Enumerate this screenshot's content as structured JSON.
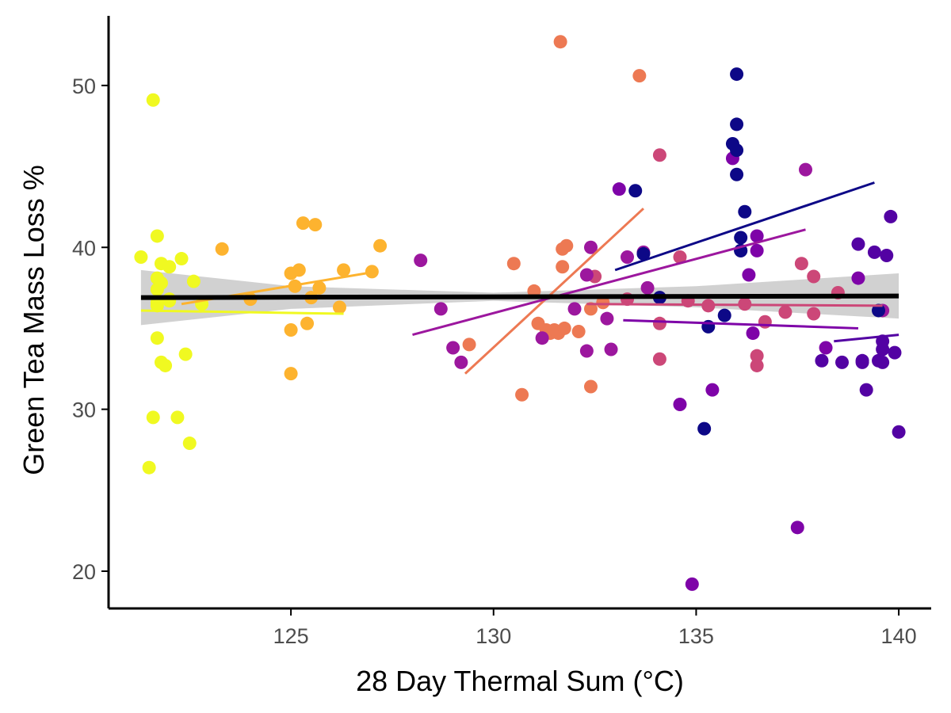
{
  "chart_data": {
    "type": "scatter",
    "title": "",
    "xlabel": "28 Day Thermal Sum (°C)",
    "ylabel": "Green Tea Mass Loss %",
    "xlim": [
      120.5,
      140.8
    ],
    "ylim": [
      17.7,
      54.3
    ],
    "x_ticks": [
      125,
      130,
      135,
      140
    ],
    "y_ticks": [
      20,
      30,
      40,
      50
    ],
    "grid": false,
    "legend": "none",
    "overall_fit": {
      "color": "#000000",
      "band_color": "#cccccc",
      "line": [
        [
          121.3,
          36.9
        ],
        [
          140,
          37.0
        ]
      ],
      "band": {
        "x": [
          121.3,
          125,
          130,
          135,
          140
        ],
        "lower": [
          35.2,
          36.2,
          36.7,
          36.3,
          35.6
        ],
        "upper": [
          38.6,
          37.6,
          37.2,
          37.6,
          38.4
        ]
      }
    },
    "series": [
      {
        "color": "#f0f921",
        "x": [
          121.3,
          121.5,
          121.6,
          121.6,
          121.7,
          121.7,
          121.7,
          121.7,
          121.7,
          121.8,
          121.8,
          121.8,
          121.7,
          121.9,
          122.0,
          122.0,
          122.0,
          122.2,
          122.3,
          122.4,
          122.5,
          122.6,
          122.8
        ],
        "y": [
          39.4,
          26.4,
          49.1,
          29.5,
          40.7,
          38.1,
          37.4,
          36.4,
          34.4,
          39.0,
          37.8,
          32.9,
          36.6,
          32.7,
          38.8,
          36.7,
          36.8,
          29.5,
          39.3,
          33.4,
          27.9,
          37.9,
          36.5
        ],
        "fit": [
          [
            121.3,
            36.1
          ],
          [
            126.3,
            35.9
          ]
        ]
      },
      {
        "color": "#fdb32f",
        "x": [
          123.3,
          124.0,
          125.0,
          125.0,
          125.0,
          125.1,
          125.2,
          125.3,
          125.4,
          125.5,
          125.6,
          125.7,
          126.2,
          126.3,
          127.0,
          127.2
        ],
        "y": [
          39.9,
          36.8,
          38.4,
          32.2,
          34.9,
          37.6,
          38.6,
          41.5,
          35.3,
          36.9,
          41.4,
          37.5,
          36.3,
          38.6,
          38.5,
          40.1
        ],
        "fit": [
          [
            122.3,
            36.5
          ],
          [
            127.1,
            38.5
          ]
        ]
      },
      {
        "color": "#ed7953",
        "x": [
          129.4,
          130.5,
          130.7,
          131.0,
          131.1,
          131.3,
          131.4,
          131.5,
          131.6,
          131.65,
          131.7,
          131.7,
          131.75,
          131.8,
          132.1,
          132.4,
          132.4,
          132.7,
          133.6
        ],
        "y": [
          34.0,
          39.0,
          30.9,
          37.3,
          35.3,
          34.9,
          34.7,
          34.9,
          34.7,
          52.7,
          39.9,
          38.8,
          35.0,
          40.1,
          34.8,
          31.4,
          36.2,
          36.6,
          50.6
        ],
        "fit": [
          [
            129.3,
            32.2
          ],
          [
            133.7,
            42.4
          ]
        ]
      },
      {
        "color": "#cc4778",
        "x": [
          132.5,
          133.3,
          134.1,
          134.1,
          134.1,
          134.6,
          134.8,
          135.3,
          136.2,
          136.5,
          136.5,
          136.7,
          137.2,
          137.6,
          137.9,
          137.9,
          138.5
        ],
        "y": [
          38.2,
          36.8,
          45.7,
          35.3,
          33.1,
          39.4,
          36.7,
          36.4,
          36.5,
          33.3,
          32.7,
          35.4,
          36.0,
          39.0,
          38.2,
          35.9,
          37.2
        ],
        "fit": [
          [
            132.3,
            36.5
          ],
          [
            139.6,
            36.4
          ]
        ]
      },
      {
        "color": "#9c179e",
        "x": [
          128.2,
          128.7,
          129.0,
          129.2,
          131.2,
          132.0,
          132.3,
          132.3,
          132.4,
          132.8,
          132.9,
          133.3,
          133.7,
          133.8,
          137.7,
          139.6
        ],
        "y": [
          39.2,
          36.2,
          33.8,
          32.9,
          34.4,
          36.2,
          33.6,
          38.3,
          40.0,
          35.6,
          33.7,
          39.4,
          39.7,
          37.5,
          44.8,
          36.1
        ],
        "fit": [
          [
            128.0,
            34.6
          ],
          [
            137.7,
            41.1
          ]
        ]
      },
      {
        "color": "#7e03a8",
        "x": [
          133.1,
          134.6,
          134.9,
          135.4,
          135.9,
          136.3,
          136.4,
          136.5,
          136.5,
          137.5,
          138.2,
          139.0
        ],
        "y": [
          43.6,
          30.3,
          19.2,
          31.2,
          45.5,
          38.3,
          34.7,
          40.7,
          39.8,
          22.7,
          33.8,
          38.1
        ],
        "fit": [
          [
            133.2,
            35.5
          ],
          [
            139.0,
            35.0
          ]
        ]
      },
      {
        "color": "#5302a3",
        "x": [
          138.1,
          138.6,
          139.0,
          139.1,
          139.2,
          139.4,
          139.5,
          139.6,
          139.6,
          139.7,
          139.8,
          139.9,
          140.0,
          139.1,
          139.6
        ],
        "y": [
          33.0,
          32.9,
          40.2,
          32.9,
          31.2,
          39.7,
          33.0,
          33.7,
          34.2,
          39.5,
          41.9,
          33.5,
          28.6,
          33.0,
          32.9
        ],
        "fit": [
          [
            138.4,
            34.2
          ],
          [
            140.0,
            34.6
          ]
        ]
      },
      {
        "color": "#0d0887",
        "x": [
          133.5,
          133.7,
          134.1,
          135.2,
          135.3,
          135.7,
          135.9,
          136.0,
          136.0,
          136.0,
          136.0,
          136.1,
          136.1,
          136.1,
          136.2,
          139.5
        ],
        "y": [
          43.5,
          39.6,
          36.9,
          28.8,
          35.1,
          35.8,
          46.4,
          50.7,
          47.6,
          44.5,
          46.0,
          40.6,
          39.8,
          39.8,
          42.2,
          36.1
        ],
        "fit": [
          [
            133.0,
            38.6
          ],
          [
            139.4,
            44.0
          ]
        ]
      }
    ]
  }
}
